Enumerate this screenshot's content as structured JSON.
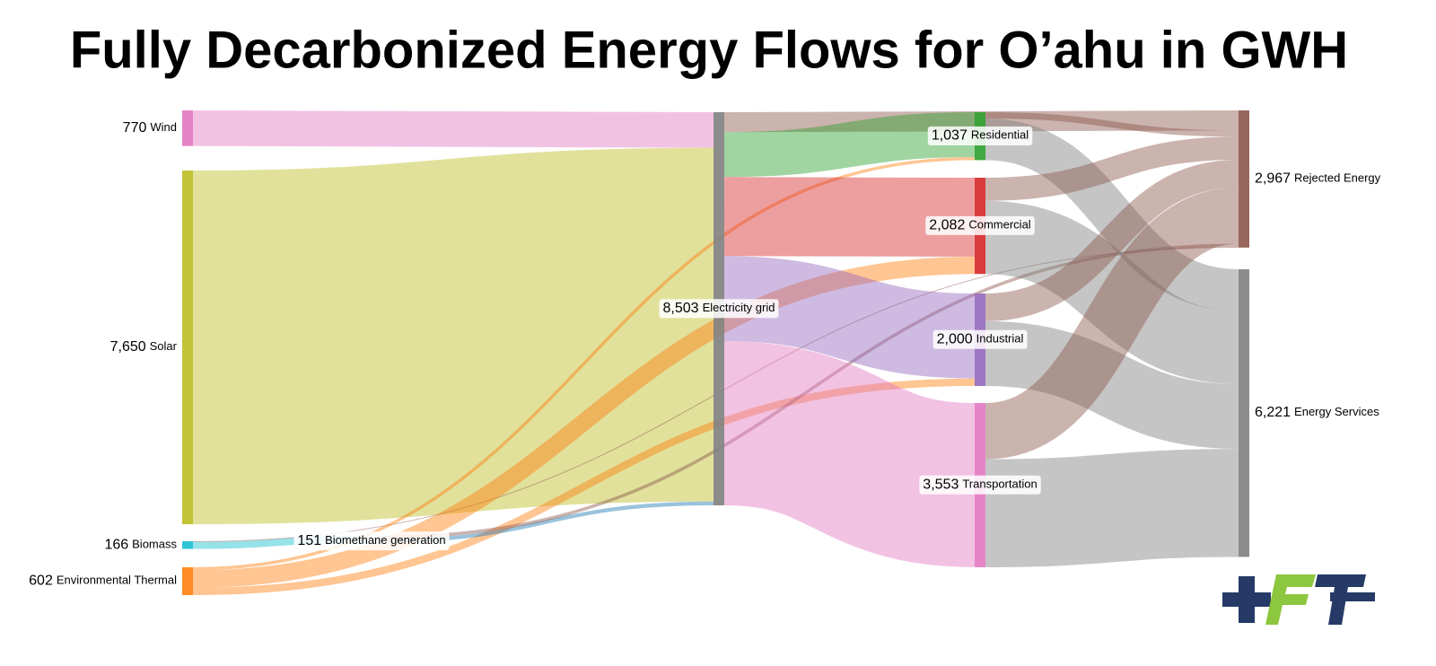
{
  "chart_data": {
    "type": "sankey",
    "title": "Fully Decarbonized Energy Flows for O’ahu in GWH",
    "nodes": [
      "Wind",
      "Solar",
      "Biomass",
      "Environmental Thermal",
      "Biomethane generation",
      "Electricity grid",
      "Residential",
      "Commercial",
      "Industrial",
      "Transportation",
      "Rejected Energy",
      "Energy Services"
    ],
    "values": [
      770,
      7650,
      166,
      602,
      151,
      8503,
      1037,
      2082,
      2000,
      3553,
      2967,
      6221
    ],
    "value_labels": [
      "770",
      "7,650",
      "166",
      "602",
      "151",
      "8,503",
      "1,037",
      "2,082",
      "2,000",
      "3,553",
      "2,967",
      "6,221"
    ],
    "colors": [
      "#e377c2",
      "#bcbd22",
      "#17becf",
      "#ff7f0e",
      "#17becf",
      "#7f7f7f",
      "#2ca02c",
      "#d62728",
      "#9467bd",
      "#e377c2",
      "#8c564b",
      "#7f7f7f"
    ],
    "links": [
      {
        "source": 0,
        "target": 5,
        "value": 770,
        "color": "#e377c2"
      },
      {
        "source": 1,
        "target": 5,
        "value": 7650,
        "color": "#bcbd22"
      },
      {
        "source": 2,
        "target": 4,
        "value": 151,
        "color": "#17becf"
      },
      {
        "source": 2,
        "target": 10,
        "value": 15,
        "color": "#8c564b"
      },
      {
        "source": 3,
        "target": 6,
        "value": 67,
        "color": "#ff7f0e"
      },
      {
        "source": 3,
        "target": 7,
        "value": 374,
        "color": "#ff7f0e"
      },
      {
        "source": 3,
        "target": 8,
        "value": 161,
        "color": "#ff7f0e"
      },
      {
        "source": 4,
        "target": 5,
        "value": 83,
        "color": "#1f77b4"
      },
      {
        "source": 4,
        "target": 10,
        "value": 68,
        "color": "#8c564b"
      },
      {
        "source": 5,
        "target": 10,
        "value": 433,
        "color": "#8c564b"
      },
      {
        "source": 5,
        "target": 6,
        "value": 970,
        "color": "#2ca02c"
      },
      {
        "source": 5,
        "target": 7,
        "value": 1708,
        "color": "#d62728"
      },
      {
        "source": 5,
        "target": 8,
        "value": 1839,
        "color": "#9467bd"
      },
      {
        "source": 5,
        "target": 9,
        "value": 3553,
        "color": "#e377c2"
      },
      {
        "source": 6,
        "target": 10,
        "value": 135,
        "color": "#8c564b"
      },
      {
        "source": 6,
        "target": 11,
        "value": 902,
        "color": "#7f7f7f"
      },
      {
        "source": 7,
        "target": 10,
        "value": 500,
        "color": "#8c564b"
      },
      {
        "source": 7,
        "target": 11,
        "value": 1582,
        "color": "#7f7f7f"
      },
      {
        "source": 8,
        "target": 10,
        "value": 600,
        "color": "#8c564b"
      },
      {
        "source": 8,
        "target": 11,
        "value": 1400,
        "color": "#7f7f7f"
      },
      {
        "source": 9,
        "target": 10,
        "value": 1216,
        "color": "#8c564b"
      },
      {
        "source": 9,
        "target": 11,
        "value": 2337,
        "color": "#7f7f7f"
      }
    ]
  }
}
